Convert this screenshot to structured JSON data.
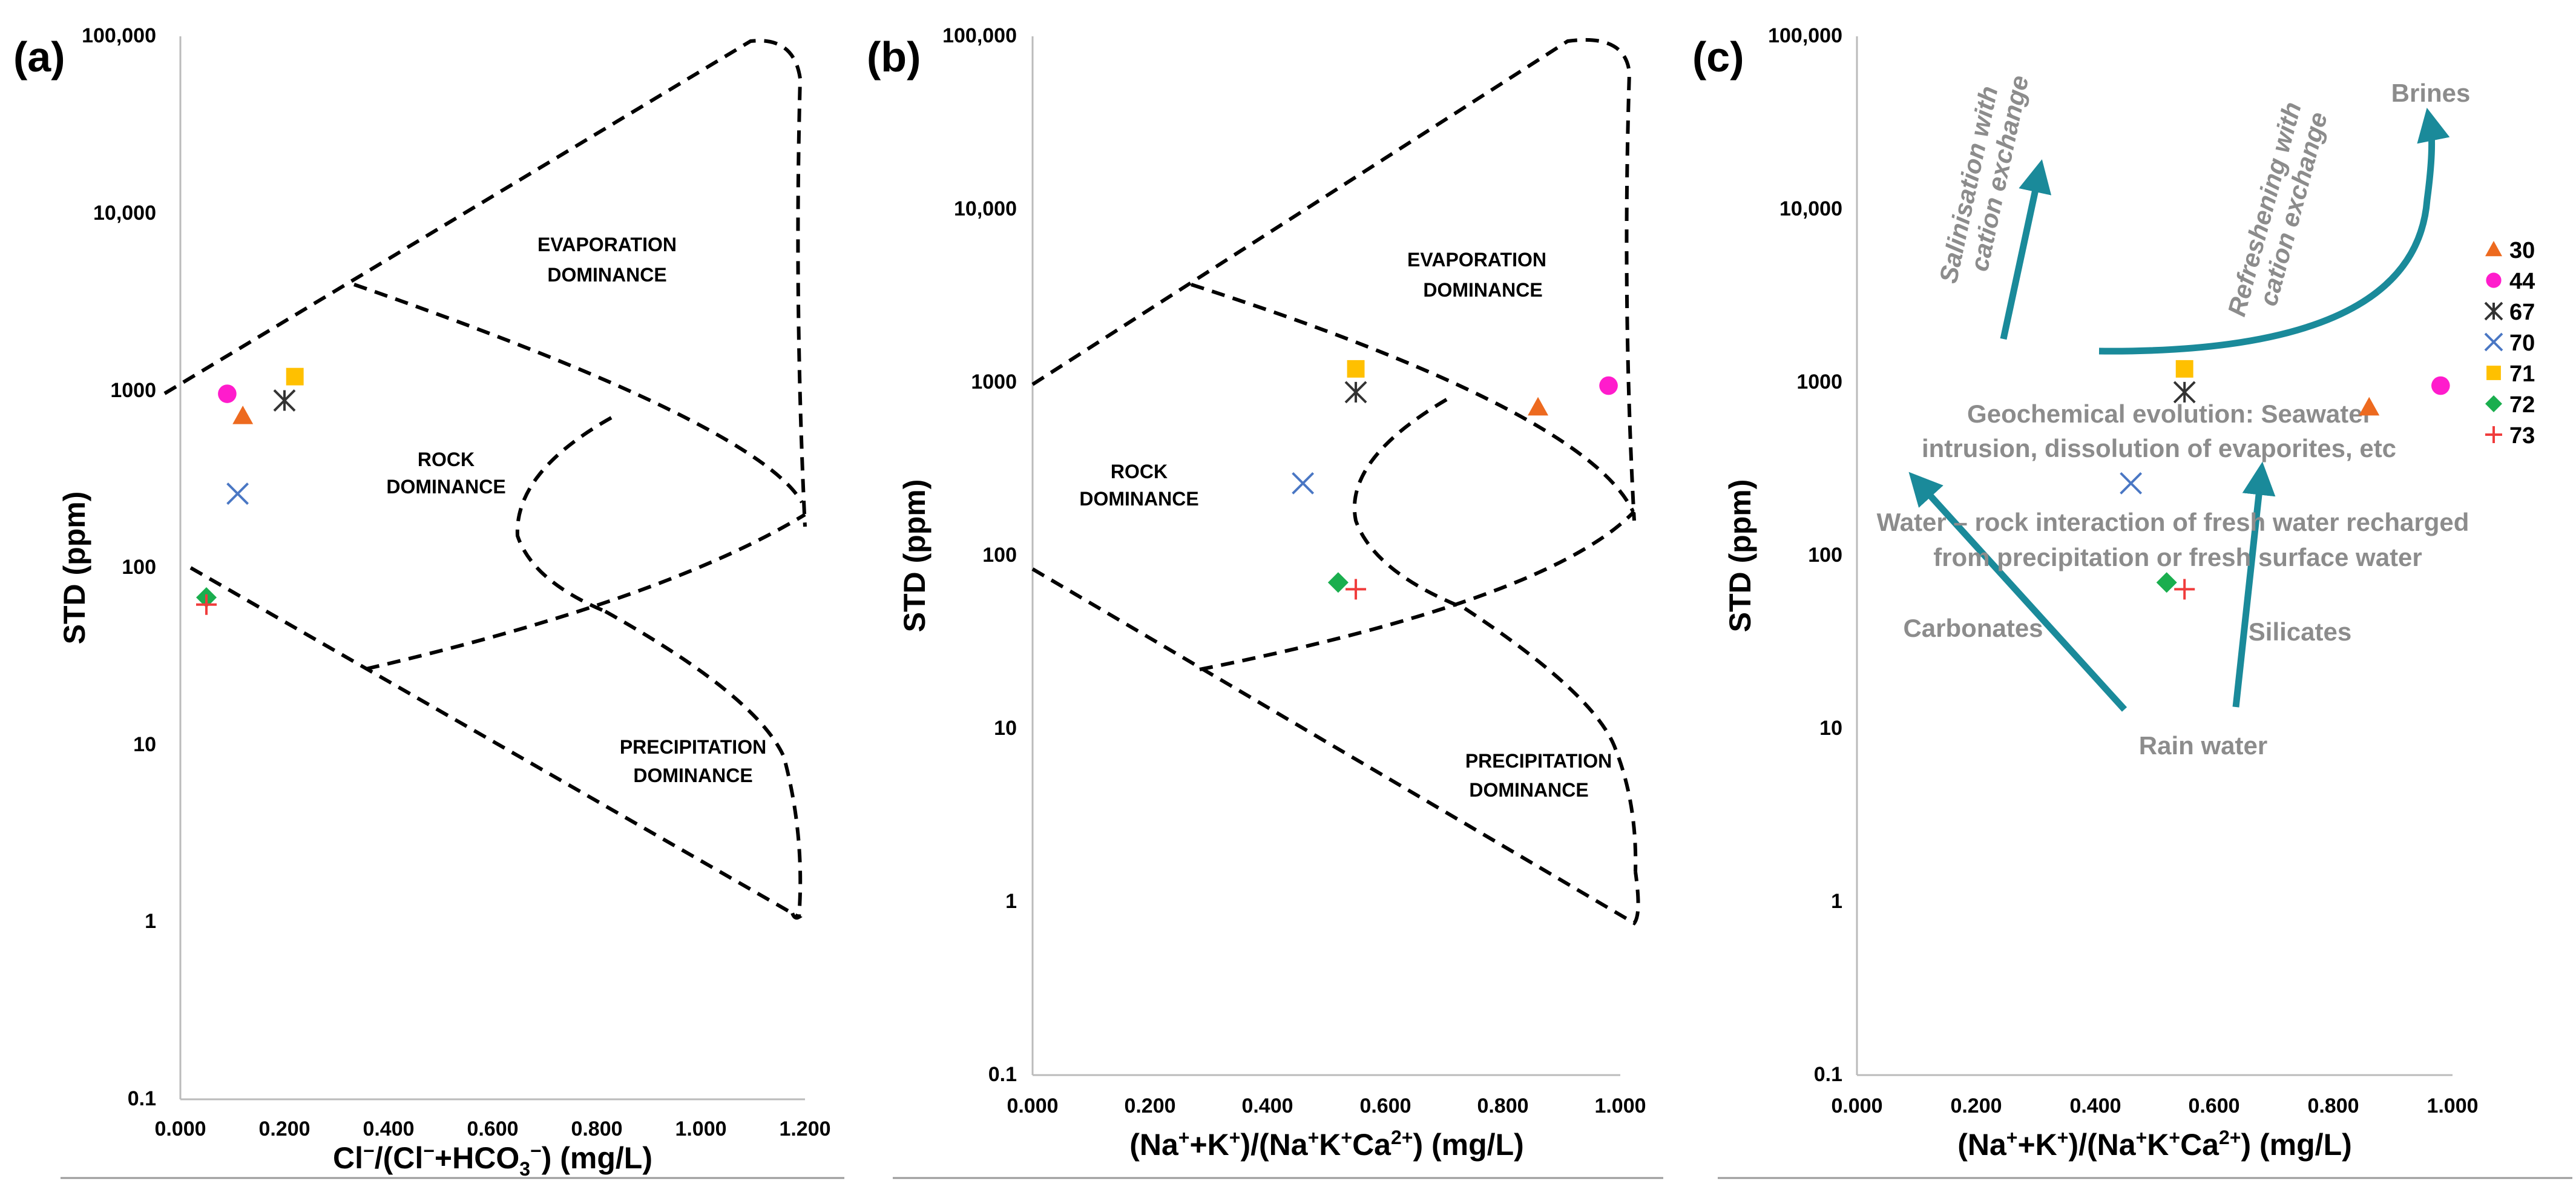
{
  "chart_data": [
    {
      "panel_label": "(a)",
      "type": "scatter",
      "xlabel_parts": [
        "Cl",
        "−",
        "/(Cl",
        "−",
        "+HCO",
        "3",
        "−",
        ")  (mg/L)"
      ],
      "ylabel": "STD  (ppm)",
      "xlim": [
        0,
        1.2
      ],
      "ylim": [
        0.1,
        100000
      ],
      "yscale": "log",
      "x_ticks": [
        "0.000",
        "0.200",
        "0.400",
        "0.600",
        "0.800",
        "1.000",
        "1.200"
      ],
      "y_ticks": [
        "0.1",
        "1",
        "10",
        "100",
        "1000",
        "10,000",
        "100,000"
      ],
      "regions": [
        {
          "label_lines": [
            "EVAPORATION",
            "DOMINANCE"
          ]
        },
        {
          "label_lines": [
            "ROCK",
            "DOMINANCE"
          ]
        },
        {
          "label_lines": [
            "PRECIPITATION",
            "DOMINANCE"
          ]
        }
      ],
      "points": [
        {
          "id": "30",
          "x": 0.12,
          "y": 720
        },
        {
          "id": "44",
          "x": 0.09,
          "y": 960
        },
        {
          "id": "67",
          "x": 0.2,
          "y": 880
        },
        {
          "id": "70",
          "x": 0.11,
          "y": 262
        },
        {
          "id": "71",
          "x": 0.22,
          "y": 1200
        },
        {
          "id": "72",
          "x": 0.05,
          "y": 68
        },
        {
          "id": "73",
          "x": 0.05,
          "y": 62
        }
      ]
    },
    {
      "panel_label": "(b)",
      "type": "scatter",
      "xlabel_parts": [
        "(Na",
        "+",
        "+K",
        "+",
        ")/(Na",
        "+",
        "K",
        "+",
        "Ca",
        "2+",
        ")  (mg/L)"
      ],
      "ylabel": "STD  (ppm)",
      "xlim": [
        0,
        1.0
      ],
      "ylim": [
        0.1,
        100000
      ],
      "yscale": "log",
      "x_ticks": [
        "0.000",
        "0.200",
        "0.400",
        "0.600",
        "0.800",
        "1.000"
      ],
      "y_ticks": [
        "0.1",
        "1",
        "10",
        "100",
        "1000",
        "10,000",
        "100,000"
      ],
      "regions": [
        {
          "label_lines": [
            "EVAPORATION",
            "DOMINANCE"
          ]
        },
        {
          "label_lines": [
            "ROCK",
            "DOMINANCE"
          ]
        },
        {
          "label_lines": [
            "PRECIPITATION",
            "DOMINANCE"
          ]
        }
      ],
      "points": [
        {
          "id": "30",
          "x": 0.86,
          "y": 720
        },
        {
          "id": "44",
          "x": 0.98,
          "y": 960
        },
        {
          "id": "67",
          "x": 0.55,
          "y": 880
        },
        {
          "id": "70",
          "x": 0.46,
          "y": 262
        },
        {
          "id": "71",
          "x": 0.55,
          "y": 1200
        },
        {
          "id": "72",
          "x": 0.52,
          "y": 70
        },
        {
          "id": "73",
          "x": 0.55,
          "y": 64
        }
      ]
    },
    {
      "panel_label": "(c)",
      "type": "scatter",
      "xlabel_parts": [
        "(Na",
        "+",
        "+K",
        "+",
        ")/(Na",
        "+",
        "K",
        "+",
        "Ca",
        "2+",
        ")  (mg/L)"
      ],
      "ylabel": "STD  (ppm)",
      "xlim": [
        0,
        1.0
      ],
      "ylim": [
        0.1,
        100000
      ],
      "yscale": "log",
      "x_ticks": [
        "0.000",
        "0.200",
        "0.400",
        "0.600",
        "0.800",
        "1.000"
      ],
      "y_ticks": [
        "0.1",
        "1",
        "10",
        "100",
        "1000",
        "10,000",
        "100,000"
      ],
      "annotations": {
        "salinisation": [
          "Salinisation with",
          "cation exchange"
        ],
        "refreshening": [
          "Refreshening with",
          "cation exchange"
        ],
        "brines": "Brines",
        "geochem": [
          "Geochemical evolution: Seawater",
          "intrusion, dissolution of evaporites, etc"
        ],
        "water_rock": [
          "Water – rock interaction of fresh water recharged",
          "from precipitation or fresh  surface water"
        ],
        "carbonates": "Carbonates",
        "silicates": "Silicates",
        "rain": "Rain water"
      },
      "points": [
        {
          "id": "30",
          "x": 0.86,
          "y": 720
        },
        {
          "id": "44",
          "x": 0.98,
          "y": 960
        },
        {
          "id": "67",
          "x": 0.55,
          "y": 880
        },
        {
          "id": "70",
          "x": 0.46,
          "y": 262
        },
        {
          "id": "71",
          "x": 0.55,
          "y": 1200
        },
        {
          "id": "72",
          "x": 0.52,
          "y": 70
        },
        {
          "id": "73",
          "x": 0.55,
          "y": 64
        }
      ]
    }
  ],
  "series": [
    {
      "id": "30",
      "label": "30",
      "marker": "triangle",
      "color": "#ed6a1f"
    },
    {
      "id": "44",
      "label": "44",
      "marker": "circle",
      "color": "#ff1ccc"
    },
    {
      "id": "67",
      "label": "67",
      "marker": "star",
      "color": "#333333"
    },
    {
      "id": "70",
      "label": "70",
      "marker": "x",
      "color": "#4a77c4"
    },
    {
      "id": "71",
      "label": "71",
      "marker": "square",
      "color": "#ffc000"
    },
    {
      "id": "72",
      "label": "72",
      "marker": "diamond",
      "color": "#1aae4e"
    },
    {
      "id": "73",
      "label": "73",
      "marker": "plus",
      "color": "#f03c3c"
    }
  ],
  "colors": {
    "arrow": "#1a8a9a",
    "annotation_text": "#8c8c8c"
  }
}
